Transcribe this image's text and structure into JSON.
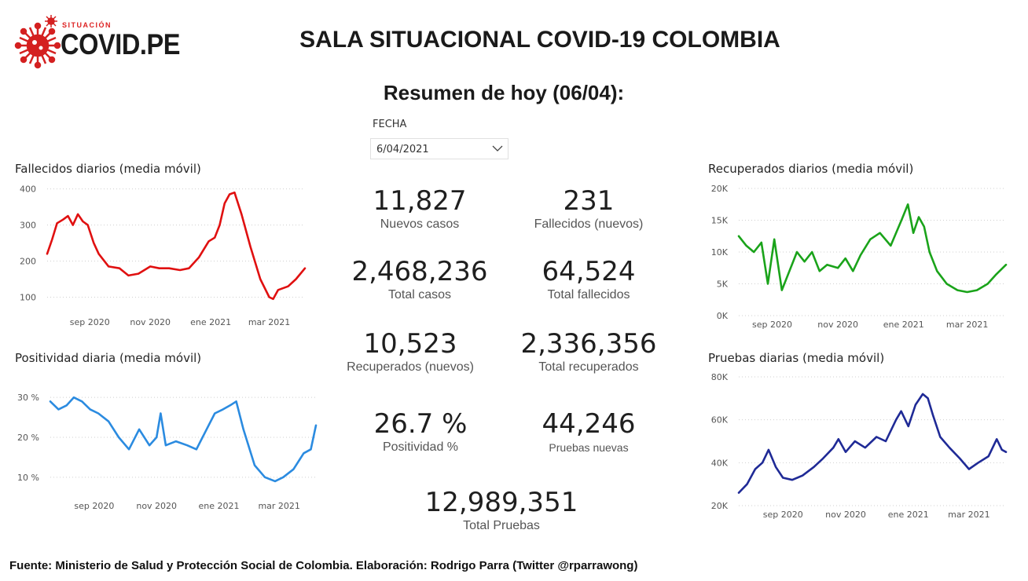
{
  "logo": {
    "small_text": "SITUACIÓN",
    "big_text": "COVID.PE",
    "icon": "virus-icon"
  },
  "header": {
    "title": "SALA SITUACIONAL COVID-19 COLOMBIA",
    "subtitle": "Resumen de hoy (06/04):"
  },
  "filter": {
    "label": "FECHA",
    "value": "6/04/2021",
    "icon": "chevron-down-icon"
  },
  "kpis": {
    "nuevos_casos": {
      "value": "11,827",
      "label": "Nuevos casos"
    },
    "fallecidos_nuevos": {
      "value": "231",
      "label": "Fallecidos (nuevos)"
    },
    "total_casos": {
      "value": "2,468,236",
      "label": "Total casos"
    },
    "total_fallecidos": {
      "value": "64,524",
      "label": "Total fallecidos"
    },
    "recuperados_nuevos": {
      "value": "10,523",
      "label": "Recuperados (nuevos)"
    },
    "total_recuperados": {
      "value": "2,336,356",
      "label": "Total recuperados"
    },
    "positividad": {
      "value": "26.7 %",
      "label": "Positividad %"
    },
    "pruebas_nuevas": {
      "value": "44,246",
      "label": "Pruebas nuevas"
    },
    "total_pruebas": {
      "value": "12,989,351",
      "label": "Total Pruebas"
    }
  },
  "footer": {
    "text": "Fuente: Ministerio de Salud y Protección Social de Colombia. Elaboración: Rodrigo Parra (Twitter @rparrawong)"
  },
  "chart_data": [
    {
      "type": "line",
      "title": "Fallecidos diarios (media móvil)",
      "color": "#e01010",
      "yticks": [
        "100",
        "200",
        "300",
        "400"
      ],
      "ytick_values": [
        100,
        200,
        300,
        400
      ],
      "ylim": [
        75,
        410
      ],
      "xlim": [
        "2020-07-20",
        "2021-04-06"
      ],
      "xticks": [
        "sep 2020",
        "nov 2020",
        "ene 2021",
        "mar 2021"
      ],
      "xtick_dates": [
        "2020-09-01",
        "2020-11-01",
        "2021-01-01",
        "2021-03-01"
      ],
      "x": [
        "2020-07-20",
        "2020-07-25",
        "2020-07-30",
        "2020-08-05",
        "2020-08-10",
        "2020-08-15",
        "2020-08-20",
        "2020-08-25",
        "2020-08-30",
        "2020-09-05",
        "2020-09-10",
        "2020-09-20",
        "2020-10-01",
        "2020-10-10",
        "2020-10-20",
        "2020-11-01",
        "2020-11-10",
        "2020-11-20",
        "2020-12-01",
        "2020-12-10",
        "2020-12-20",
        "2020-12-30",
        "2021-01-05",
        "2021-01-10",
        "2021-01-15",
        "2021-01-20",
        "2021-01-25",
        "2021-02-01",
        "2021-02-10",
        "2021-02-20",
        "2021-03-01",
        "2021-03-05",
        "2021-03-10",
        "2021-03-20",
        "2021-03-28",
        "2021-04-06"
      ],
      "series": [
        {
          "values": [
            220,
            260,
            305,
            315,
            325,
            300,
            330,
            310,
            300,
            250,
            220,
            185,
            180,
            160,
            165,
            185,
            180,
            180,
            175,
            180,
            210,
            255,
            265,
            300,
            360,
            385,
            390,
            330,
            240,
            150,
            100,
            95,
            120,
            130,
            150,
            180
          ]
        }
      ]
    },
    {
      "type": "line",
      "title": "Positividad diaria (media móvil)",
      "color": "#2b8be0",
      "yticks": [
        "10 %",
        "20 %",
        "30 %"
      ],
      "ytick_values": [
        10,
        20,
        30
      ],
      "ylim": [
        8,
        32
      ],
      "xlim": [
        "2020-07-20",
        "2021-04-06"
      ],
      "xticks": [
        "sep 2020",
        "nov 2020",
        "ene 2021",
        "mar 2021"
      ],
      "xtick_dates": [
        "2020-09-01",
        "2020-11-01",
        "2021-01-01",
        "2021-03-01"
      ],
      "x": [
        "2020-07-20",
        "2020-07-28",
        "2020-08-05",
        "2020-08-12",
        "2020-08-20",
        "2020-08-28",
        "2020-09-05",
        "2020-09-15",
        "2020-09-25",
        "2020-10-05",
        "2020-10-15",
        "2020-10-25",
        "2020-11-01",
        "2020-11-05",
        "2020-11-10",
        "2020-11-20",
        "2020-12-01",
        "2020-12-10",
        "2020-12-20",
        "2020-12-28",
        "2021-01-05",
        "2021-01-12",
        "2021-01-18",
        "2021-01-25",
        "2021-02-05",
        "2021-02-15",
        "2021-02-25",
        "2021-03-05",
        "2021-03-15",
        "2021-03-25",
        "2021-04-01",
        "2021-04-06"
      ],
      "series": [
        {
          "values": [
            29,
            27,
            28,
            30,
            29,
            27,
            26,
            24,
            20,
            17,
            22,
            18,
            20,
            26,
            18,
            19,
            18,
            17,
            22,
            26,
            27,
            28,
            29,
            22,
            13,
            10,
            9,
            10,
            12,
            16,
            17,
            23
          ]
        }
      ]
    },
    {
      "type": "line",
      "title": "Recuperados diarios (media móvil)",
      "color": "#1aa31a",
      "yticks": [
        "0K",
        "5K",
        "10K",
        "15K",
        "20K"
      ],
      "ytick_values": [
        0,
        5000,
        10000,
        15000,
        20000
      ],
      "ylim": [
        0,
        20000
      ],
      "xlim": [
        "2020-08-01",
        "2021-04-06"
      ],
      "xticks": [
        "sep 2020",
        "nov 2020",
        "ene 2021",
        "mar 2021"
      ],
      "xtick_dates": [
        "2020-09-01",
        "2020-11-01",
        "2021-01-01",
        "2021-03-01"
      ],
      "x": [
        "2020-08-01",
        "2020-08-08",
        "2020-08-15",
        "2020-08-22",
        "2020-08-28",
        "2020-09-03",
        "2020-09-10",
        "2020-09-17",
        "2020-09-24",
        "2020-10-01",
        "2020-10-08",
        "2020-10-15",
        "2020-10-22",
        "2020-11-01",
        "2020-11-08",
        "2020-11-15",
        "2020-11-22",
        "2020-12-01",
        "2020-12-10",
        "2020-12-20",
        "2020-12-30",
        "2021-01-05",
        "2021-01-10",
        "2021-01-15",
        "2021-01-20",
        "2021-01-25",
        "2021-02-01",
        "2021-02-10",
        "2021-02-20",
        "2021-03-01",
        "2021-03-10",
        "2021-03-20",
        "2021-03-28",
        "2021-04-06"
      ],
      "series": [
        {
          "values": [
            12500,
            11000,
            10000,
            11500,
            5000,
            12000,
            4000,
            7000,
            10000,
            8500,
            10000,
            7000,
            8000,
            7500,
            9000,
            7000,
            9500,
            12000,
            13000,
            11000,
            15000,
            17500,
            13000,
            15500,
            14000,
            10000,
            7000,
            5000,
            4000,
            3700,
            4000,
            5000,
            6500,
            8000
          ]
        }
      ]
    },
    {
      "type": "line",
      "title": "Pruebas diarias (media móvil)",
      "color": "#1f2a96",
      "yticks": [
        "20K",
        "40K",
        "60K",
        "80K"
      ],
      "ytick_values": [
        20000,
        40000,
        60000,
        80000
      ],
      "ylim": [
        20000,
        80000
      ],
      "xlim": [
        "2020-07-20",
        "2021-04-06"
      ],
      "xticks": [
        "sep 2020",
        "nov 2020",
        "ene 2021",
        "mar 2021"
      ],
      "xtick_dates": [
        "2020-09-01",
        "2020-11-01",
        "2021-01-01",
        "2021-03-01"
      ],
      "x": [
        "2020-07-20",
        "2020-07-28",
        "2020-08-05",
        "2020-08-12",
        "2020-08-18",
        "2020-08-25",
        "2020-09-01",
        "2020-09-10",
        "2020-09-20",
        "2020-10-01",
        "2020-10-10",
        "2020-10-20",
        "2020-10-25",
        "2020-11-01",
        "2020-11-10",
        "2020-11-20",
        "2020-12-01",
        "2020-12-10",
        "2020-12-20",
        "2020-12-25",
        "2021-01-01",
        "2021-01-08",
        "2021-01-15",
        "2021-01-20",
        "2021-01-25",
        "2021-02-01",
        "2021-02-10",
        "2021-02-20",
        "2021-03-01",
        "2021-03-10",
        "2021-03-20",
        "2021-03-28",
        "2021-04-02",
        "2021-04-06"
      ],
      "series": [
        {
          "values": [
            26000,
            30000,
            37000,
            40000,
            46000,
            38000,
            33000,
            32000,
            34000,
            38000,
            42000,
            47000,
            51000,
            45000,
            50000,
            47000,
            52000,
            50000,
            60000,
            64000,
            57000,
            67000,
            72000,
            70000,
            62000,
            52000,
            47000,
            42000,
            37000,
            40000,
            43000,
            51000,
            46000,
            45000
          ]
        }
      ]
    }
  ]
}
